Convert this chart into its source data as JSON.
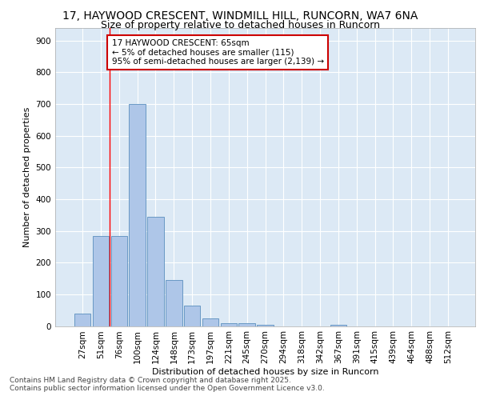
{
  "title_line1": "17, HAYWOOD CRESCENT, WINDMILL HILL, RUNCORN, WA7 6NA",
  "title_line2": "Size of property relative to detached houses in Runcorn",
  "xlabel": "Distribution of detached houses by size in Runcorn",
  "ylabel": "Number of detached properties",
  "categories": [
    "27sqm",
    "51sqm",
    "76sqm",
    "100sqm",
    "124sqm",
    "148sqm",
    "173sqm",
    "197sqm",
    "221sqm",
    "245sqm",
    "270sqm",
    "294sqm",
    "318sqm",
    "342sqm",
    "367sqm",
    "391sqm",
    "415sqm",
    "439sqm",
    "464sqm",
    "488sqm",
    "512sqm"
  ],
  "values": [
    40,
    285,
    285,
    700,
    345,
    145,
    65,
    25,
    10,
    10,
    5,
    0,
    0,
    0,
    5,
    0,
    0,
    0,
    0,
    0,
    0
  ],
  "bar_color": "#aec6e8",
  "bar_edge_color": "#5a8fbe",
  "background_color": "#dce9f5",
  "grid_color": "#ffffff",
  "red_line_x": 1.5,
  "annotation_text": "17 HAYWOOD CRESCENT: 65sqm\n← 5% of detached houses are smaller (115)\n95% of semi-detached houses are larger (2,139) →",
  "annotation_box_color": "#ffffff",
  "annotation_box_edge": "#cc0000",
  "ylim": [
    0,
    940
  ],
  "yticks": [
    0,
    100,
    200,
    300,
    400,
    500,
    600,
    700,
    800,
    900
  ],
  "footer": "Contains HM Land Registry data © Crown copyright and database right 2025.\nContains public sector information licensed under the Open Government Licence v3.0.",
  "title_fontsize": 10,
  "subtitle_fontsize": 9,
  "axis_label_fontsize": 8,
  "tick_fontsize": 7.5,
  "footer_fontsize": 6.5,
  "ann_fontsize": 7.5
}
